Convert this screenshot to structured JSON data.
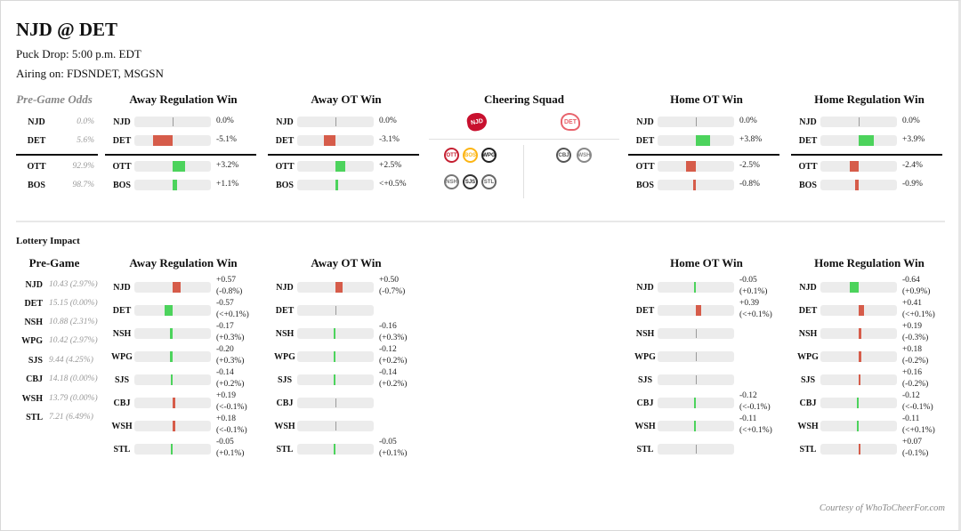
{
  "header": {
    "title": "NJD @ DET",
    "puck_drop": "Puck Drop: 5:00 p.m. EDT",
    "airing": "Airing on: FDSNDET, MSGSN"
  },
  "colors": {
    "positive": "#4cd35c",
    "negative": "#d65c4a",
    "track": "#ececec"
  },
  "pregame_odds": {
    "title": "Pre-Game Odds",
    "teams": [
      {
        "team": "NJD",
        "value": "0.0%"
      },
      {
        "team": "DET",
        "value": "5.6%"
      },
      {
        "team": "OTT",
        "value": "92.9%"
      },
      {
        "team": "BOS",
        "value": "98.7%"
      }
    ]
  },
  "scenarios": [
    {
      "title": "Away Regulation Win",
      "rows": [
        {
          "team": "NJD",
          "label": "0.0%",
          "delta_pct": 0.0
        },
        {
          "team": "DET",
          "label": "-5.1%",
          "delta_pct": -5.1
        },
        {
          "team": "OTT",
          "label": "+3.2%",
          "delta_pct": 3.2
        },
        {
          "team": "BOS",
          "label": "+1.1%",
          "delta_pct": 1.1
        }
      ]
    },
    {
      "title": "Away OT Win",
      "rows": [
        {
          "team": "NJD",
          "label": "0.0%",
          "delta_pct": 0.0
        },
        {
          "team": "DET",
          "label": "-3.1%",
          "delta_pct": -3.1
        },
        {
          "team": "OTT",
          "label": "+2.5%",
          "delta_pct": 2.5
        },
        {
          "team": "BOS",
          "label": "<+0.5%",
          "delta_pct": 0.3
        }
      ]
    },
    {
      "title": "Home OT Win",
      "rows": [
        {
          "team": "NJD",
          "label": "0.0%",
          "delta_pct": 0.0
        },
        {
          "team": "DET",
          "label": "+3.8%",
          "delta_pct": 3.8
        },
        {
          "team": "OTT",
          "label": "-2.5%",
          "delta_pct": -2.5
        },
        {
          "team": "BOS",
          "label": "-0.8%",
          "delta_pct": -0.8
        }
      ]
    },
    {
      "title": "Home Regulation Win",
      "rows": [
        {
          "team": "NJD",
          "label": "0.0%",
          "delta_pct": 0.0
        },
        {
          "team": "DET",
          "label": "+3.9%",
          "delta_pct": 3.9
        },
        {
          "team": "OTT",
          "label": "-2.4%",
          "delta_pct": -2.4
        },
        {
          "team": "BOS",
          "label": "-0.9%",
          "delta_pct": -0.9
        }
      ]
    }
  ],
  "cheering_squad": {
    "title": "Cheering Squad",
    "away_primary": {
      "team": "NJD",
      "icon": "devils-logo-icon",
      "color": "#c8102e"
    },
    "home_primary": {
      "team": "DET",
      "icon": "red-wings-logo-icon",
      "color": "#e8636c"
    },
    "away_supporters": [
      {
        "team": "OTT",
        "icon": "senators-logo-icon",
        "color": "#c52032"
      },
      {
        "team": "BOS",
        "icon": "bruins-logo-icon",
        "color": "#fcb514"
      },
      {
        "team": "WPG",
        "icon": "jets-logo-icon",
        "color": "#222222"
      },
      {
        "team": "NSH",
        "icon": "predators-logo-icon",
        "color": "#777777"
      },
      {
        "team": "SJS",
        "icon": "sharks-logo-icon",
        "color": "#333333"
      },
      {
        "team": "STL",
        "icon": "blues-logo-icon",
        "color": "#666666"
      }
    ],
    "home_supporters": [
      {
        "team": "CBJ",
        "icon": "blue-jackets-logo-icon",
        "color": "#555555"
      },
      {
        "team": "WSH",
        "icon": "capitals-logo-icon",
        "color": "#888888"
      }
    ]
  },
  "lottery": {
    "title": "Lottery Impact",
    "pregame_title": "Pre-Game",
    "pregame": [
      {
        "team": "NJD",
        "value": "10.43 (2.97%)"
      },
      {
        "team": "DET",
        "value": "15.15 (0.00%)"
      },
      {
        "team": "NSH",
        "value": "10.88 (2.31%)"
      },
      {
        "team": "WPG",
        "value": "10.42 (2.97%)"
      },
      {
        "team": "SJS",
        "value": "9.44 (4.25%)"
      },
      {
        "team": "CBJ",
        "value": "14.18 (0.00%)"
      },
      {
        "team": "WSH",
        "value": "13.79 (0.00%)"
      },
      {
        "team": "STL",
        "value": "7.21 (6.49%)"
      }
    ],
    "scenarios": [
      {
        "title": "Away Regulation Win",
        "rows": [
          {
            "team": "NJD",
            "delta": 0.57,
            "pick": "+0.57",
            "odds": "(-0.8%)"
          },
          {
            "team": "DET",
            "delta": -0.57,
            "pick": "-0.57",
            "odds": "(<+0.1%)"
          },
          {
            "team": "NSH",
            "delta": -0.17,
            "pick": "-0.17",
            "odds": "(+0.3%)"
          },
          {
            "team": "WPG",
            "delta": -0.2,
            "pick": "-0.20",
            "odds": "(+0.3%)"
          },
          {
            "team": "SJS",
            "delta": -0.14,
            "pick": "-0.14",
            "odds": "(+0.2%)"
          },
          {
            "team": "CBJ",
            "delta": 0.19,
            "pick": "+0.19",
            "odds": "(<-0.1%)"
          },
          {
            "team": "WSH",
            "delta": 0.18,
            "pick": "+0.18",
            "odds": "(<-0.1%)"
          },
          {
            "team": "STL",
            "delta": -0.05,
            "pick": "-0.05",
            "odds": "(+0.1%)"
          }
        ]
      },
      {
        "title": "Away OT Win",
        "rows": [
          {
            "team": "NJD",
            "delta": 0.5,
            "pick": "+0.50",
            "odds": "(-0.7%)"
          },
          {
            "team": "DET",
            "delta": 0,
            "pick": "",
            "odds": ""
          },
          {
            "team": "NSH",
            "delta": -0.16,
            "pick": "-0.16",
            "odds": "(+0.3%)"
          },
          {
            "team": "WPG",
            "delta": -0.12,
            "pick": "-0.12",
            "odds": "(+0.2%)"
          },
          {
            "team": "SJS",
            "delta": -0.14,
            "pick": "-0.14",
            "odds": "(+0.2%)"
          },
          {
            "team": "CBJ",
            "delta": 0,
            "pick": "",
            "odds": ""
          },
          {
            "team": "WSH",
            "delta": 0,
            "pick": "",
            "odds": ""
          },
          {
            "team": "STL",
            "delta": -0.05,
            "pick": "-0.05",
            "odds": "(+0.1%)"
          }
        ]
      },
      {
        "title": "Home OT Win",
        "rows": [
          {
            "team": "NJD",
            "delta": -0.05,
            "pick": "-0.05",
            "odds": "(+0.1%)"
          },
          {
            "team": "DET",
            "delta": 0.39,
            "pick": "+0.39",
            "odds": "(<+0.1%)"
          },
          {
            "team": "NSH",
            "delta": 0,
            "pick": "",
            "odds": ""
          },
          {
            "team": "WPG",
            "delta": 0,
            "pick": "",
            "odds": ""
          },
          {
            "team": "SJS",
            "delta": 0,
            "pick": "",
            "odds": ""
          },
          {
            "team": "CBJ",
            "delta": -0.12,
            "pick": "-0.12",
            "odds": "(<-0.1%)"
          },
          {
            "team": "WSH",
            "delta": -0.11,
            "pick": "-0.11",
            "odds": "(<+0.1%)"
          },
          {
            "team": "STL",
            "delta": 0,
            "pick": "",
            "odds": ""
          }
        ]
      },
      {
        "title": "Home Regulation Win",
        "rows": [
          {
            "team": "NJD",
            "delta": -0.64,
            "pick": "-0.64",
            "odds": "(+0.9%)"
          },
          {
            "team": "DET",
            "delta": 0.41,
            "pick": "+0.41",
            "odds": "(<+0.1%)"
          },
          {
            "team": "NSH",
            "delta": 0.19,
            "pick": "+0.19",
            "odds": "(-0.3%)"
          },
          {
            "team": "WPG",
            "delta": 0.18,
            "pick": "+0.18",
            "odds": "(-0.2%)"
          },
          {
            "team": "SJS",
            "delta": 0.16,
            "pick": "+0.16",
            "odds": "(-0.2%)"
          },
          {
            "team": "CBJ",
            "delta": -0.12,
            "pick": "-0.12",
            "odds": "(<-0.1%)"
          },
          {
            "team": "WSH",
            "delta": -0.11,
            "pick": "-0.11",
            "odds": "(<+0.1%)"
          },
          {
            "team": "STL",
            "delta": 0.07,
            "pick": "+0.07",
            "odds": "(-0.1%)"
          }
        ]
      }
    ]
  },
  "footer": {
    "courtesy": "Courtesy of WhoToCheerFor.com"
  }
}
